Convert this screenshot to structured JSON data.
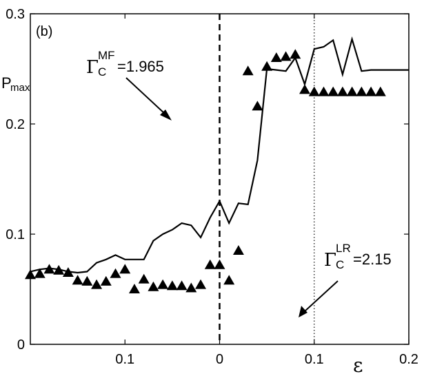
{
  "chart_data": {
    "type": "line",
    "panel_label": "(b)",
    "xlabel": "ε",
    "ylabel": {
      "main": "P",
      "sub": "max"
    },
    "xlim": [
      -0.2,
      0.2
    ],
    "ylim": [
      0,
      0.3
    ],
    "grid": false,
    "x_ticks": [
      {
        "value": -0.1,
        "label": "0.1"
      },
      {
        "value": 0,
        "label": "0"
      },
      {
        "value": 0.1,
        "label": "0.1"
      },
      {
        "value": 0.2,
        "label": "0.2"
      }
    ],
    "y_ticks": [
      {
        "value": 0,
        "label": "0"
      },
      {
        "value": 0.1,
        "label": "0.1"
      },
      {
        "value": 0.2,
        "label": "0.2"
      },
      {
        "value": 0.3,
        "label": "0.3"
      }
    ],
    "series": [
      {
        "style": "line",
        "color": "#000000",
        "x": [
          -0.2,
          -0.19,
          -0.18,
          -0.17,
          -0.16,
          -0.15,
          -0.14,
          -0.13,
          -0.12,
          -0.11,
          -0.1,
          -0.09,
          -0.08,
          -0.07,
          -0.06,
          -0.05,
          -0.04,
          -0.03,
          -0.02,
          -0.01,
          0,
          0.01,
          0.02,
          0.03,
          0.04,
          0.05,
          0.06,
          0.07,
          0.08,
          0.09,
          0.1,
          0.11,
          0.12,
          0.13,
          0.14,
          0.15,
          0.16,
          0.17,
          0.18,
          0.19,
          0.2
        ],
        "y": [
          0.066,
          0.068,
          0.069,
          0.068,
          0.066,
          0.065,
          0.066,
          0.074,
          0.077,
          0.081,
          0.077,
          0.077,
          0.077,
          0.094,
          0.1,
          0.104,
          0.11,
          0.108,
          0.097,
          0.115,
          0.13,
          0.11,
          0.128,
          0.127,
          0.167,
          0.25,
          0.249,
          0.248,
          0.26,
          0.236,
          0.268,
          0.27,
          0.276,
          0.245,
          0.277,
          0.248,
          0.249,
          0.249,
          0.249,
          0.249,
          0.249
        ]
      },
      {
        "style": "markers",
        "marker": "triangle",
        "color": "#000000",
        "x": [
          -0.2,
          -0.19,
          -0.18,
          -0.17,
          -0.16,
          -0.15,
          -0.14,
          -0.13,
          -0.12,
          -0.11,
          -0.1,
          -0.09,
          -0.08,
          -0.07,
          -0.06,
          -0.05,
          -0.04,
          -0.03,
          -0.02,
          -0.01,
          0,
          0.01,
          0.02,
          0.03,
          0.04,
          0.05,
          0.06,
          0.07,
          0.08,
          0.09,
          0.1,
          0.11,
          0.12,
          0.13,
          0.14,
          0.15,
          0.16,
          0.17
        ],
        "y": [
          0.063,
          0.064,
          0.068,
          0.067,
          0.065,
          0.058,
          0.057,
          0.054,
          0.057,
          0.064,
          0.068,
          0.05,
          0.059,
          0.052,
          0.054,
          0.053,
          0.053,
          0.051,
          0.054,
          0.072,
          0.072,
          0.058,
          0.085,
          0.248,
          0.216,
          0.252,
          0.26,
          0.261,
          0.263,
          0.231,
          0.229,
          0.229,
          0.229,
          0.229,
          0.229,
          0.229,
          0.229,
          0.229
        ]
      }
    ],
    "vlines": [
      {
        "x": 0,
        "style": "dashed",
        "label": {
          "main": "Γ",
          "sub": "C",
          "sup": "MF",
          "value": "=1.965"
        }
      },
      {
        "x": 0.1,
        "style": "dotted",
        "label": {
          "main": "Γ",
          "sub": "C",
          "sup": "LR",
          "value": "=2.15"
        }
      }
    ]
  }
}
